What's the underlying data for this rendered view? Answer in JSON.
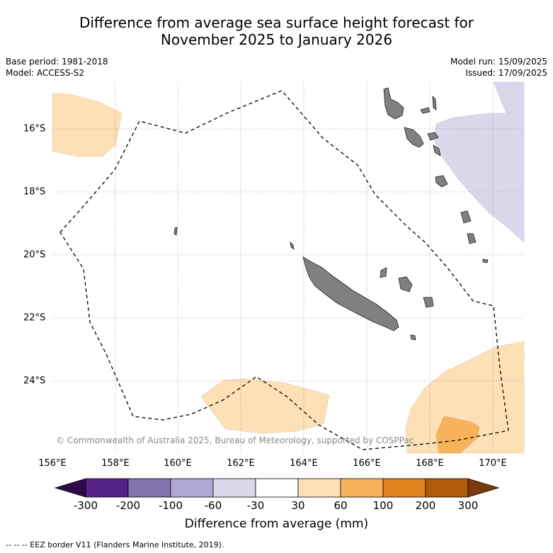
{
  "title_line1": "Difference from average sea surface height forecast for",
  "title_line2": "November 2025 to January 2026",
  "meta_left": {
    "base_period": "Base period: 1981-2018",
    "model": "Model: ACCESS-S2"
  },
  "meta_right": {
    "model_run": "Model run: 15/09/2025",
    "issued": "Issued: 17/09/2025"
  },
  "copyright": "© Commonwealth of Australia 2025, Bureau of Meteorology, supported by COSPPac",
  "x_ticks": [
    "156°E",
    "158°E",
    "160°E",
    "162°E",
    "164°E",
    "166°E",
    "168°E",
    "170°E"
  ],
  "y_ticks": [
    "16°S",
    "18°S",
    "20°S",
    "22°S",
    "24°S"
  ],
  "colorbar": {
    "labels": [
      "-300",
      "-200",
      "-100",
      "-60",
      "-30",
      "30",
      "60",
      "100",
      "200",
      "300"
    ],
    "colors": [
      "#552288",
      "#8073ae",
      "#b0a8d2",
      "#d8d8ea",
      "#ffffff",
      "#fde0b6",
      "#f8b25b",
      "#e0821e",
      "#b05a0c"
    ],
    "under_color": "#2d0a4b",
    "over_color": "#7a3a0a",
    "title": "Difference from average (mm)"
  },
  "footnote": "--  --  -- EEZ border V11 (Flanders Marine Institute, 2019)."
}
